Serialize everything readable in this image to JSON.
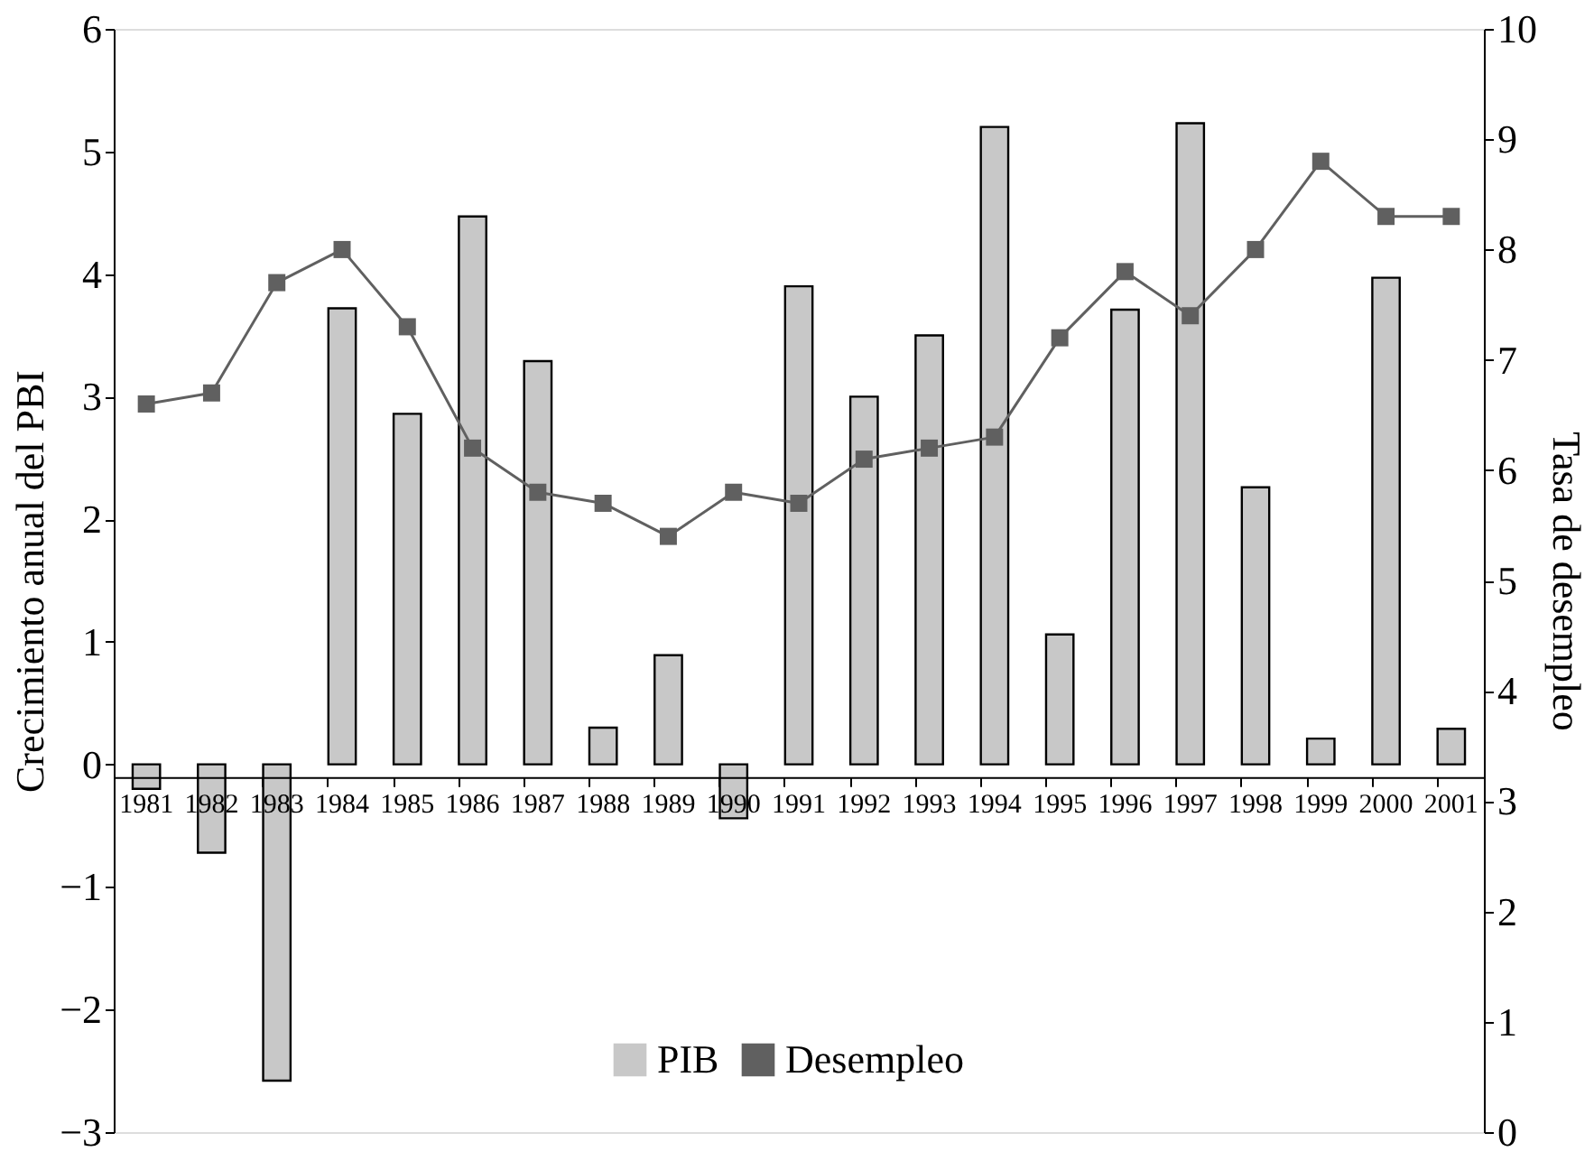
{
  "chart_data": {
    "type": "bar",
    "ylabel": "Crecimiento anual del PBI",
    "y2label": "Tasa de desempleo",
    "categories": [
      "1981",
      "1982",
      "1983",
      "1984",
      "1985",
      "1986",
      "1987",
      "1988",
      "1989",
      "1990",
      "1991",
      "1992",
      "1993",
      "1994",
      "1995",
      "1996",
      "1997",
      "1998",
      "1999",
      "2000",
      "2001"
    ],
    "series": [
      {
        "name": "PIB",
        "color": "#c8c8c8",
        "values": [
          -0.2,
          -0.72,
          -2.58,
          3.72,
          2.86,
          4.47,
          3.29,
          0.3,
          0.89,
          -0.44,
          3.9,
          3.0,
          3.5,
          5.2,
          1.06,
          3.71,
          5.23,
          2.26,
          0.21,
          3.97,
          0.29
        ]
      },
      {
        "name": "Desempleo",
        "type": "line",
        "axis": "y2",
        "color": "#606060",
        "marker": "square",
        "line_style": "solid",
        "values": [
          6.6,
          6.7,
          7.7,
          8.0,
          7.3,
          6.2,
          5.8,
          5.7,
          5.4,
          5.8,
          5.7,
          6.1,
          6.2,
          6.3,
          7.2,
          7.8,
          7.4,
          8.0,
          8.8,
          8.3,
          8.3
        ]
      }
    ],
    "ylim": [
      -3,
      6
    ],
    "yticks": [
      -3,
      -2,
      -1,
      0,
      1,
      2,
      3,
      4,
      5,
      6
    ],
    "y2lim": [
      0,
      10
    ],
    "y2ticks": [
      0,
      1,
      2,
      3,
      4,
      5,
      6,
      7,
      8,
      9,
      10
    ],
    "grid": false,
    "legend": "bottom"
  }
}
